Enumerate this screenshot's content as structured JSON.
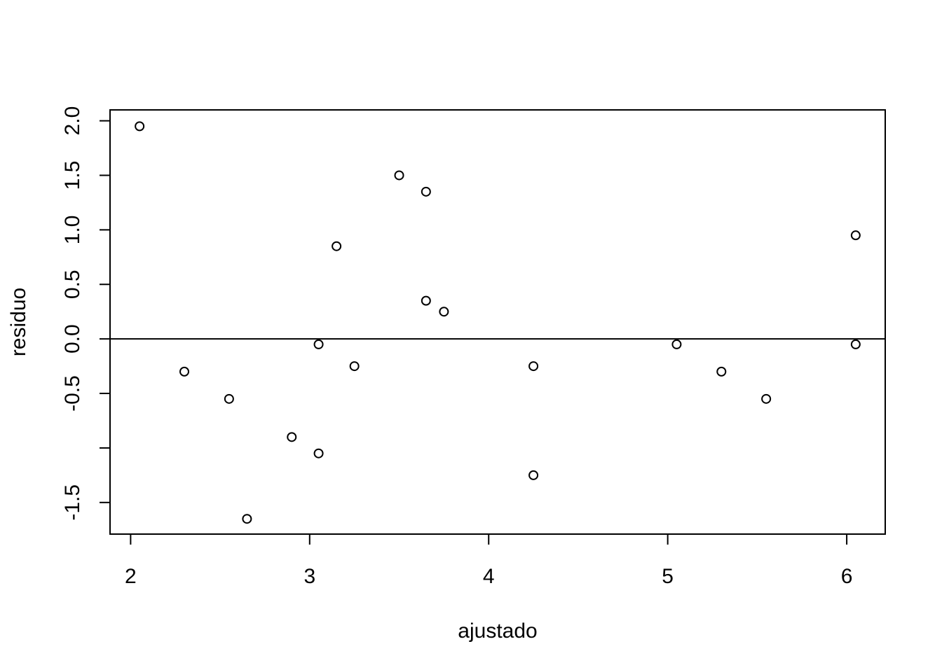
{
  "chart_data": {
    "type": "scatter",
    "title": "",
    "xlabel": "ajustado",
    "ylabel": "residuo",
    "xlim": [
      1.885,
      6.215
    ],
    "ylim": [
      -1.79,
      2.1
    ],
    "xticks": [
      2,
      3,
      4,
      5,
      6
    ],
    "xtick_labels": [
      "2",
      "3",
      "4",
      "5",
      "6"
    ],
    "yticks": [
      -1.5,
      -1.0,
      -0.5,
      0.0,
      0.5,
      1.0,
      1.5,
      2.0
    ],
    "ytick_labels": [
      "-1.5",
      "",
      "-0.5",
      "0.0",
      "0.5",
      "1.0",
      "1.5",
      "2.0"
    ],
    "grid": false,
    "reference_line": {
      "y": 0
    },
    "marker": "open-circle",
    "x": [
      2.05,
      2.3,
      2.55,
      2.65,
      2.9,
      3.05,
      3.05,
      3.15,
      3.25,
      3.5,
      3.65,
      3.65,
      3.75,
      4.25,
      4.25,
      5.05,
      5.3,
      5.55,
      6.05,
      6.05
    ],
    "y": [
      1.95,
      -0.3,
      -0.55,
      -1.65,
      -0.9,
      -0.05,
      -1.05,
      0.85,
      -0.25,
      1.5,
      1.35,
      0.35,
      0.25,
      -0.25,
      -1.25,
      -0.05,
      -0.3,
      -0.55,
      0.95,
      -0.05
    ]
  }
}
